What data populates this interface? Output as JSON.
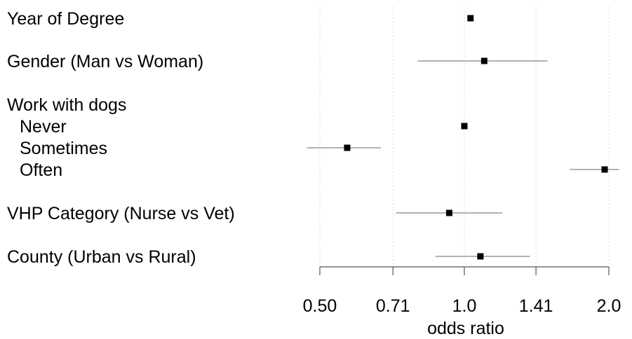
{
  "chart_data": {
    "type": "scatter",
    "subtype": "forest-plot",
    "title": "",
    "xlabel": "odds ratio",
    "ylabel": "",
    "x_scale": "log2",
    "xlim": [
      0.5,
      2.0
    ],
    "x_ticks": [
      0.5,
      0.71,
      1.0,
      1.41,
      2.0
    ],
    "x_tick_labels": [
      "0.50",
      "0.71",
      "1.0",
      "1.41",
      "2.0"
    ],
    "grid": "vertical-dotted",
    "rows": [
      {
        "label": "Year of Degree",
        "estimate": 1.03,
        "ci": null
      },
      {
        "label": "Gender (Man vs Woman)",
        "estimate": 1.1,
        "ci": [
          0.8,
          1.49
        ]
      },
      {
        "label": "Work with dogs",
        "estimate": null,
        "ci": null
      },
      {
        "label": "Never",
        "indent": true,
        "estimate": 1.0,
        "ci": null
      },
      {
        "label": "Sometimes",
        "indent": true,
        "estimate": 0.57,
        "ci": [
          0.47,
          0.67
        ]
      },
      {
        "label": "Often",
        "indent": true,
        "estimate": 1.96,
        "ci": [
          1.66,
          2.1
        ]
      },
      {
        "label": "VHP Category (Nurse vs Vet)",
        "estimate": 0.93,
        "ci": [
          0.72,
          1.2
        ]
      },
      {
        "label": "County (Urban vs Rural)",
        "estimate": 1.08,
        "ci": [
          0.87,
          1.37
        ]
      }
    ],
    "colors": {
      "point": "#000000",
      "ci": "#b3b3b3",
      "grid": "#dddddd",
      "axis": "#555555"
    }
  }
}
